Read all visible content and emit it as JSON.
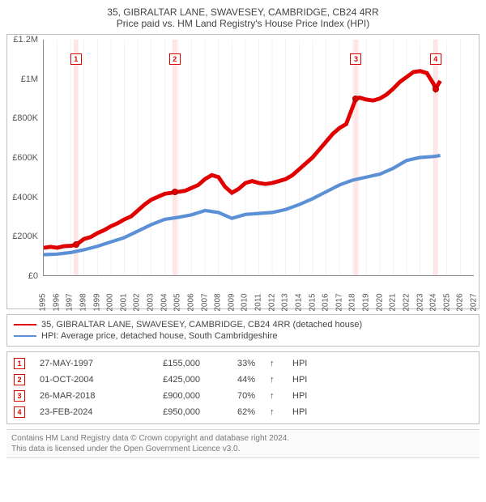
{
  "title": {
    "line1": "35, GIBRALTAR LANE, SWAVESEY, CAMBRIDGE, CB24 4RR",
    "line2": "Price paid vs. HM Land Registry's House Price Index (HPI)"
  },
  "chart": {
    "type": "line",
    "background_color": "#ffffff",
    "grid_color": "#e6e6e6",
    "axis_color": "#888888",
    "label_fontsize": 11,
    "tick_fontsize": 10,
    "x_range": [
      1995,
      2027
    ],
    "y_range": [
      0,
      1200000
    ],
    "y_ticks": [
      {
        "v": 0,
        "label": "£0"
      },
      {
        "v": 200000,
        "label": "£200K"
      },
      {
        "v": 400000,
        "label": "£400K"
      },
      {
        "v": 600000,
        "label": "£600K"
      },
      {
        "v": 800000,
        "label": "£800K"
      },
      {
        "v": 1000000,
        "label": "£1M"
      },
      {
        "v": 1200000,
        "label": "£1.2M"
      }
    ],
    "x_ticks": [
      1995,
      1996,
      1997,
      1998,
      1999,
      2000,
      2001,
      2002,
      2003,
      2004,
      2005,
      2006,
      2007,
      2008,
      2009,
      2010,
      2011,
      2012,
      2013,
      2014,
      2015,
      2016,
      2017,
      2018,
      2019,
      2020,
      2021,
      2022,
      2023,
      2024,
      2025,
      2026,
      2027
    ],
    "series": [
      {
        "name": "property",
        "label": "35, GIBRALTAR LANE, SWAVESEY, CAMBRIDGE, CB24 4RR (detached house)",
        "color": "#e10000",
        "line_width": 1.4,
        "points": [
          [
            1995,
            140000
          ],
          [
            1995.5,
            145000
          ],
          [
            1996,
            140000
          ],
          [
            1996.5,
            148000
          ],
          [
            1997,
            150000
          ],
          [
            1997.4,
            155000
          ],
          [
            1998,
            185000
          ],
          [
            1998.5,
            195000
          ],
          [
            1999,
            215000
          ],
          [
            1999.5,
            230000
          ],
          [
            2000,
            250000
          ],
          [
            2000.5,
            265000
          ],
          [
            2001,
            285000
          ],
          [
            2001.5,
            300000
          ],
          [
            2002,
            330000
          ],
          [
            2002.5,
            360000
          ],
          [
            2003,
            385000
          ],
          [
            2003.5,
            400000
          ],
          [
            2004,
            415000
          ],
          [
            2004.5,
            420000
          ],
          [
            2004.75,
            425000
          ],
          [
            2005,
            425000
          ],
          [
            2005.5,
            430000
          ],
          [
            2006,
            445000
          ],
          [
            2006.5,
            460000
          ],
          [
            2007,
            490000
          ],
          [
            2007.5,
            510000
          ],
          [
            2008,
            500000
          ],
          [
            2008.5,
            450000
          ],
          [
            2009,
            420000
          ],
          [
            2009.5,
            440000
          ],
          [
            2010,
            470000
          ],
          [
            2010.5,
            480000
          ],
          [
            2011,
            470000
          ],
          [
            2011.5,
            465000
          ],
          [
            2012,
            470000
          ],
          [
            2012.5,
            480000
          ],
          [
            2013,
            490000
          ],
          [
            2013.5,
            510000
          ],
          [
            2014,
            540000
          ],
          [
            2014.5,
            570000
          ],
          [
            2015,
            600000
          ],
          [
            2015.5,
            640000
          ],
          [
            2016,
            680000
          ],
          [
            2016.5,
            720000
          ],
          [
            2017,
            750000
          ],
          [
            2017.5,
            770000
          ],
          [
            2018,
            860000
          ],
          [
            2018.23,
            900000
          ],
          [
            2018.5,
            905000
          ],
          [
            2019,
            895000
          ],
          [
            2019.5,
            890000
          ],
          [
            2020,
            900000
          ],
          [
            2020.5,
            920000
          ],
          [
            2021,
            950000
          ],
          [
            2021.5,
            985000
          ],
          [
            2022,
            1010000
          ],
          [
            2022.5,
            1035000
          ],
          [
            2023,
            1040000
          ],
          [
            2023.5,
            1030000
          ],
          [
            2024,
            975000
          ],
          [
            2024.15,
            950000
          ],
          [
            2024.5,
            990000
          ]
        ]
      },
      {
        "name": "hpi",
        "label": "HPI: Average price, detached house, South Cambridgeshire",
        "color": "#5b8fd6",
        "line_width": 1.2,
        "points": [
          [
            1995,
            105000
          ],
          [
            1996,
            108000
          ],
          [
            1997,
            116000
          ],
          [
            1998,
            130000
          ],
          [
            1999,
            148000
          ],
          [
            2000,
            170000
          ],
          [
            2001,
            192000
          ],
          [
            2002,
            225000
          ],
          [
            2003,
            258000
          ],
          [
            2004,
            285000
          ],
          [
            2005,
            295000
          ],
          [
            2006,
            308000
          ],
          [
            2007,
            330000
          ],
          [
            2008,
            320000
          ],
          [
            2009,
            290000
          ],
          [
            2010,
            310000
          ],
          [
            2011,
            315000
          ],
          [
            2012,
            320000
          ],
          [
            2013,
            335000
          ],
          [
            2014,
            360000
          ],
          [
            2015,
            390000
          ],
          [
            2016,
            425000
          ],
          [
            2017,
            460000
          ],
          [
            2018,
            485000
          ],
          [
            2019,
            500000
          ],
          [
            2020,
            515000
          ],
          [
            2021,
            545000
          ],
          [
            2022,
            585000
          ],
          [
            2023,
            600000
          ],
          [
            2024,
            605000
          ],
          [
            2024.5,
            610000
          ]
        ]
      }
    ],
    "sale_markers": [
      {
        "n": "1",
        "x": 1997.4,
        "y": 155000,
        "box_y": 1100000
      },
      {
        "n": "2",
        "x": 2004.75,
        "y": 425000,
        "box_y": 1100000
      },
      {
        "n": "3",
        "x": 2018.23,
        "y": 900000,
        "box_y": 1100000
      },
      {
        "n": "4",
        "x": 2024.15,
        "y": 950000,
        "box_y": 1100000
      }
    ],
    "marker_band_color": "#ffe5e5",
    "marker_band_width_years": 0.35
  },
  "legend": {
    "items": [
      {
        "color": "#e10000",
        "label": "35, GIBRALTAR LANE, SWAVESEY, CAMBRIDGE, CB24 4RR (detached house)"
      },
      {
        "color": "#5b8fd6",
        "label": "HPI: Average price, detached house, South Cambridgeshire"
      }
    ]
  },
  "sales": {
    "rows": [
      {
        "n": "1",
        "date": "27-MAY-1997",
        "price": "£155,000",
        "pct": "33%",
        "arrow": "↑",
        "label": "HPI"
      },
      {
        "n": "2",
        "date": "01-OCT-2004",
        "price": "£425,000",
        "pct": "44%",
        "arrow": "↑",
        "label": "HPI"
      },
      {
        "n": "3",
        "date": "26-MAR-2018",
        "price": "£900,000",
        "pct": "70%",
        "arrow": "↑",
        "label": "HPI"
      },
      {
        "n": "4",
        "date": "23-FEB-2024",
        "price": "£950,000",
        "pct": "62%",
        "arrow": "↑",
        "label": "HPI"
      }
    ]
  },
  "footer": {
    "line1": "Contains HM Land Registry data © Crown copyright and database right 2024.",
    "line2": "This data is licensed under the Open Government Licence v3.0."
  }
}
